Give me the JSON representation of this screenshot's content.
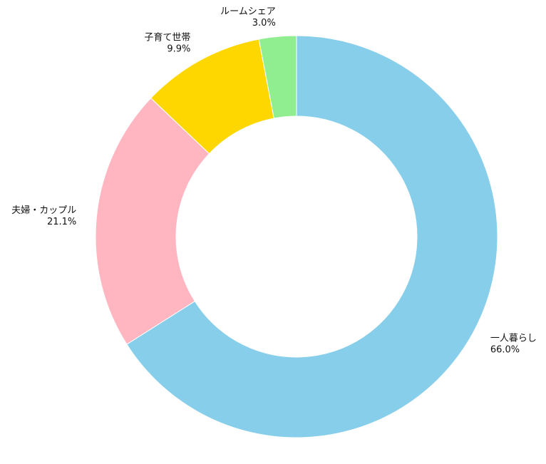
{
  "chart_data": {
    "type": "pie",
    "donut": true,
    "title": "",
    "slices": [
      {
        "label": "一人暮らし",
        "pct_text": "66.0%",
        "value": 66.0,
        "color": "#87CEEB"
      },
      {
        "label": "夫婦・カップル",
        "pct_text": "21.1%",
        "value": 21.1,
        "color": "#FFB6C1"
      },
      {
        "label": "子育て世帯",
        "pct_text": "9.9%",
        "value": 9.9,
        "color": "#FFD700"
      },
      {
        "label": "ルームシェア",
        "pct_text": "3.0%",
        "value": 3.0,
        "color": "#90EE90"
      }
    ]
  }
}
